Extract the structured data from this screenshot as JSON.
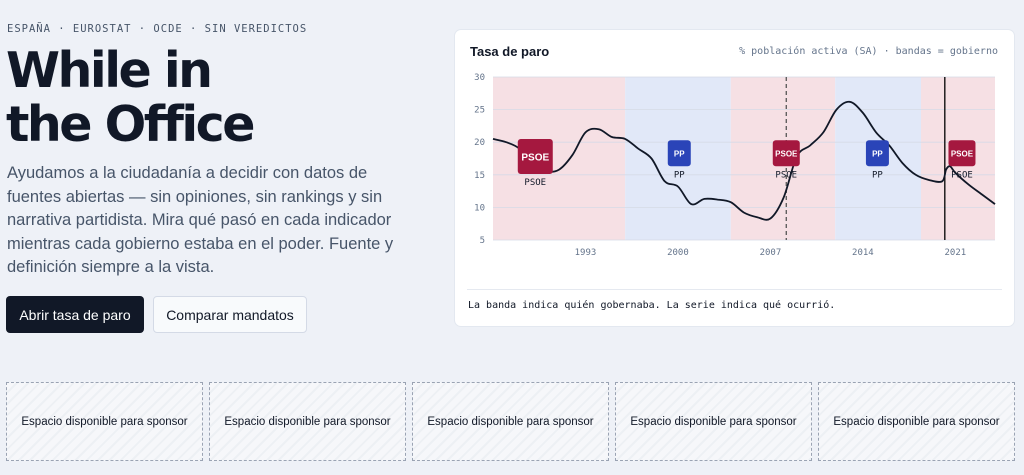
{
  "hero": {
    "eyebrow": "ESPAÑA · EUROSTAT · OCDE · SIN VEREDICTOS",
    "title_line1": "While in",
    "title_line2": "the Office",
    "lead": "Ayudamos a la ciudadanía a decidir con datos de fuentes abiertas — sin opiniones, sin rankings y sin narrativa partidista. Mira qué pasó en cada indicador mientras cada gobierno estaba en el poder. Fuente y definición siempre a la vista.",
    "primary_button": "Abrir tasa de paro",
    "secondary_button": "Comparar mandatos"
  },
  "chart_card": {
    "title": "Tasa de paro",
    "meta": "% población activa (SA) · bandas = gobierno",
    "caption": "La banda indica quién gobernaba. La serie indica qué ocurrió."
  },
  "colors": {
    "psoe": "#a5183f",
    "pp": "#2a44b8",
    "psoe_band": "#f6e0e4",
    "pp_band": "#e1e8f8",
    "line": "#111827"
  },
  "chart_data": {
    "type": "line",
    "title": "Tasa de paro",
    "xlabel": "",
    "ylabel": "",
    "xlim": [
      1986,
      2024
    ],
    "ylim": [
      5,
      30
    ],
    "yticks": [
      5,
      10,
      15,
      20,
      25,
      30
    ],
    "xticks": [
      1993,
      2000,
      2007,
      2014,
      2021
    ],
    "grid": true,
    "governments": [
      {
        "party": "PSOE",
        "start": 1986,
        "end": 1996
      },
      {
        "party": "PP",
        "start": 1996,
        "end": 2004
      },
      {
        "party": "PSOE",
        "start": 2004,
        "end": 2011.9
      },
      {
        "party": "PP",
        "start": 2011.9,
        "end": 2018.4
      },
      {
        "party": "PSOE",
        "start": 2018.4,
        "end": 2024
      }
    ],
    "markers": [
      {
        "x": 2008.2,
        "style": "dashed"
      },
      {
        "x": 2020.2,
        "style": "solid"
      }
    ],
    "series": [
      {
        "name": "",
        "x": [
          1986,
          1987,
          1988,
          1989,
          1990,
          1991,
          1992,
          1993,
          1994,
          1995,
          1996,
          1997,
          1998,
          1999,
          2000,
          2001,
          2002,
          2003,
          2004,
          2005,
          2006,
          2007,
          2008,
          2009,
          2010,
          2011,
          2012,
          2013,
          2014,
          2015,
          2016,
          2017,
          2018,
          2019,
          2020,
          2020.3,
          2020.6,
          2021,
          2022,
          2023,
          2024
        ],
        "values": [
          20.5,
          20.0,
          19.0,
          16.5,
          15.5,
          15.8,
          18.0,
          21.5,
          22.0,
          20.8,
          20.5,
          19.0,
          17.5,
          14.0,
          13.2,
          10.5,
          11.3,
          11.2,
          10.8,
          9.2,
          8.5,
          8.3,
          11.5,
          17.8,
          19.5,
          21.5,
          25.0,
          26.2,
          24.5,
          21.5,
          19.5,
          16.8,
          15.0,
          14.2,
          14.0,
          15.8,
          16.3,
          15.3,
          13.5,
          12.0,
          10.5
        ]
      }
    ],
    "annotations": [
      {
        "label": "PSOE",
        "x": 1989.2,
        "y": 17.8,
        "big": true
      },
      {
        "label": "PP",
        "x": 2000.1,
        "y": 18.3,
        "big": false
      },
      {
        "label": "PSOE",
        "x": 2008.2,
        "y": 18.3,
        "big": false
      },
      {
        "label": "PP",
        "x": 2015.1,
        "y": 18.3,
        "big": false
      },
      {
        "label": "PSOE",
        "x": 2021.5,
        "y": 18.3,
        "big": false
      }
    ]
  },
  "sponsors": [
    "Espacio disponible para sponsor",
    "Espacio disponible para sponsor",
    "Espacio disponible para sponsor",
    "Espacio disponible para sponsor",
    "Espacio disponible para sponsor"
  ]
}
